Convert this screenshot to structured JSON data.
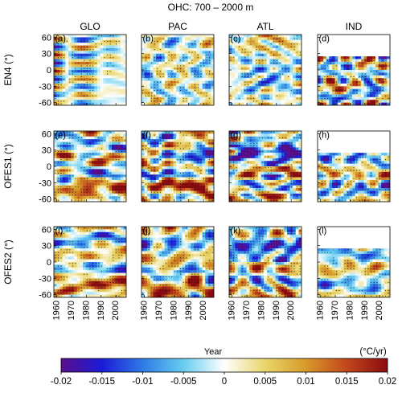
{
  "chart_data": {
    "type": "heatmap",
    "title": "OHC: 700 – 2000 m",
    "columns": [
      "GLO",
      "PAC",
      "ATL",
      "IND"
    ],
    "rows": [
      "EN4 (°)",
      "OFES1 (°)",
      "OFES2 (°)"
    ],
    "panel_labels": [
      "(a)",
      "(b)",
      "(c)",
      "(d)",
      "(e)",
      "(f)",
      "(g)",
      "(h)",
      "(i)",
      "(j)",
      "(k)",
      "(l)"
    ],
    "xlabel": "Year",
    "x_ticks": [
      "1960",
      "1970",
      "1980",
      "1990",
      "2000"
    ],
    "xlim": [
      1958,
      2007
    ],
    "y_ticks": [
      "-60",
      "-30",
      "0",
      "30",
      "60"
    ],
    "ylim": [
      -65,
      65
    ],
    "basin_northern_limit": {
      "GLO": 65,
      "PAC": 65,
      "ATL": 65,
      "IND": 25
    },
    "colorbar": {
      "unit": "(°C/yr)",
      "min": -0.02,
      "max": 0.02,
      "tick_labels": [
        "-0.02",
        "-0.015",
        "-0.01",
        "-0.005",
        "0",
        "0.005",
        "0.01",
        "0.015",
        "0.02"
      ],
      "colors": [
        "#5a0f8c",
        "#1b1bd6",
        "#2e7be6",
        "#67cdf0",
        "#ffffff",
        "#e8d66a",
        "#d79a2a",
        "#c2461c",
        "#8a0c10"
      ]
    },
    "stippling": "significant trends marked by black dots"
  }
}
